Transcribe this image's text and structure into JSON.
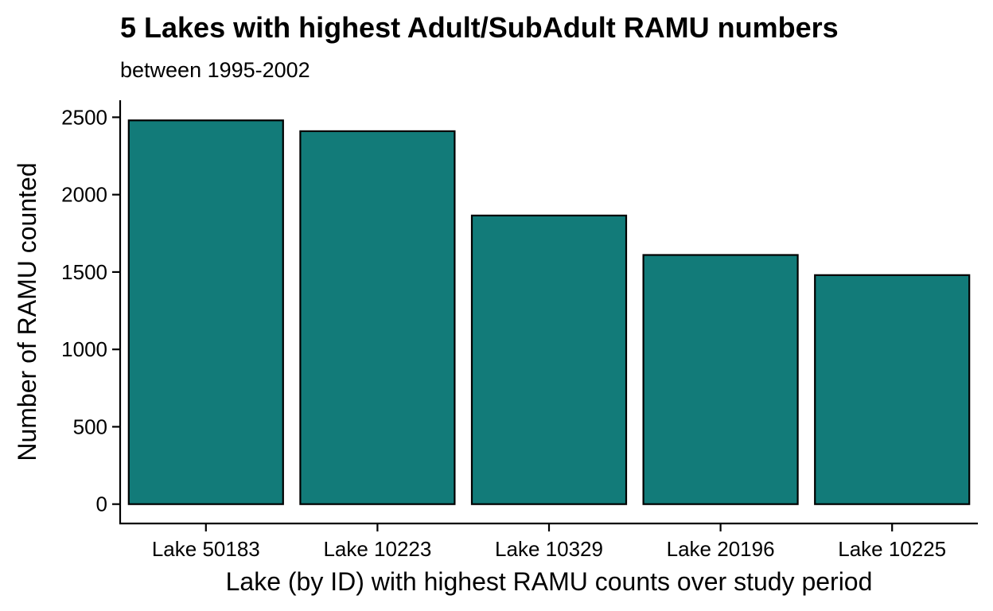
{
  "chart_data": {
    "type": "bar",
    "title": "5 Lakes with highest Adult/SubAdult RAMU numbers",
    "subtitle": "between 1995-2002",
    "xlabel": "Lake (by ID) with highest RAMU counts over study period",
    "ylabel": "Number of RAMU counted",
    "categories": [
      "Lake 50183",
      "Lake 10223",
      "Lake 10329",
      "Lake 20196",
      "Lake 10225"
    ],
    "values": [
      2480,
      2410,
      1865,
      1610,
      1480
    ],
    "ylim": [
      -125,
      2610
    ],
    "yticks": [
      0,
      500,
      1000,
      1500,
      2000,
      2500
    ],
    "bar_fill": "#127b79",
    "bar_stroke": "#000000",
    "grid": false,
    "legend": "none"
  }
}
